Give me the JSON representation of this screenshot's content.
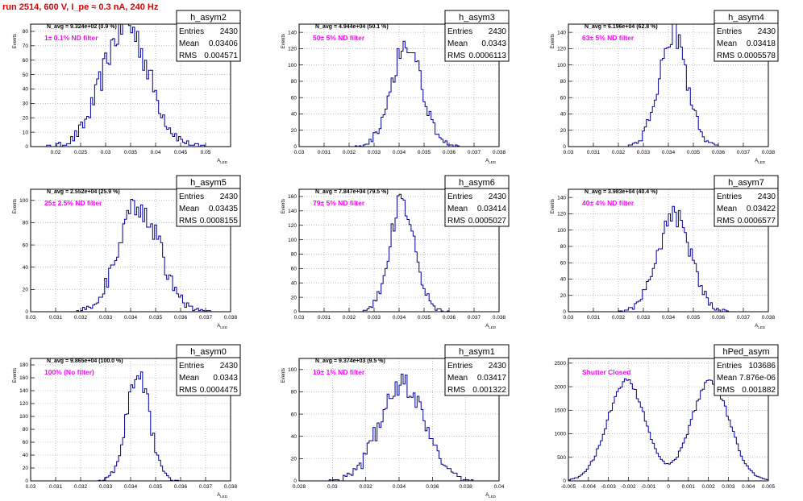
{
  "run_title": "run 2514,   600 V, I_pe ≈ 0.3 nA, 240 Hz",
  "colors": {
    "histogram": "#000099",
    "annotation": "#ff00ff",
    "title": "#e00000",
    "grid": "#9a9a9a"
  },
  "chart_data": [
    {
      "type": "histogram",
      "name": "h_asym2",
      "xlim": [
        0.015,
        0.055
      ],
      "ylim": [
        0,
        85
      ],
      "xticks": [
        0.02,
        0.025,
        0.03,
        0.035,
        0.04,
        0.045,
        0.05
      ],
      "xtick_labels": [
        "0.02",
        "0.025",
        "0.03",
        "0.035",
        "0.04",
        "0.045",
        "0.05"
      ],
      "yticks": [
        0,
        10,
        20,
        30,
        40,
        50,
        60,
        70,
        80
      ],
      "ytick_labels": [
        "0",
        "10",
        "20",
        "30",
        "40",
        "50",
        "60",
        "70",
        "80"
      ],
      "xlabel": "A_LED",
      "ylabel": "Events",
      "grid": true,
      "navg": "N_avg = 9.324e+02 (0.9 %)",
      "filter": "1± 0.1% ND filter",
      "stats": {
        "entries": "2430",
        "mean": "0.03406",
        "rms": "0.004571"
      },
      "dist": {
        "mean": 0.03406,
        "rms": 0.004571,
        "count": 2430,
        "bins": 100
      }
    },
    {
      "type": "histogram",
      "name": "h_asym3",
      "xlim": [
        0.03,
        0.038
      ],
      "ylim": [
        0,
        150
      ],
      "xticks": [
        0.03,
        0.031,
        0.032,
        0.033,
        0.034,
        0.035,
        0.036,
        0.037,
        0.038
      ],
      "xtick_labels": [
        "0.03",
        "0.031",
        "0.032",
        "0.033",
        "0.034",
        "0.035",
        "0.036",
        "0.037",
        "0.038"
      ],
      "yticks": [
        0,
        20,
        40,
        60,
        80,
        100,
        120,
        140
      ],
      "ytick_labels": [
        "0",
        "20",
        "40",
        "60",
        "80",
        "100",
        "120",
        "140"
      ],
      "xlabel": "A_LED",
      "ylabel": "Events",
      "grid": true,
      "navg": "N_avg = 4.944e+04 (50.1 %)",
      "filter": "50± 5% ND filter",
      "stats": {
        "entries": "2430",
        "mean": "0.0343",
        "rms": "0.0006113"
      },
      "dist": {
        "mean": 0.0343,
        "rms": 0.0006113,
        "count": 2430,
        "bins": 100
      }
    },
    {
      "type": "histogram",
      "name": "h_asym4",
      "xlim": [
        0.03,
        0.038
      ],
      "ylim": [
        0,
        150
      ],
      "xticks": [
        0.03,
        0.031,
        0.032,
        0.033,
        0.034,
        0.035,
        0.036,
        0.037,
        0.038
      ],
      "xtick_labels": [
        "0.03",
        "0.031",
        "0.032",
        "0.033",
        "0.034",
        "0.035",
        "0.036",
        "0.037",
        "0.038"
      ],
      "yticks": [
        0,
        20,
        40,
        60,
        80,
        100,
        120,
        140
      ],
      "ytick_labels": [
        "0",
        "20",
        "40",
        "60",
        "80",
        "100",
        "120",
        "140"
      ],
      "xlabel": "A_LED",
      "ylabel": "Events",
      "grid": true,
      "navg": "N_avg = 6.196e+04 (62.8 %)",
      "filter": "63± 5% ND filter",
      "stats": {
        "entries": "2430",
        "mean": "0.03418",
        "rms": "0.0005578"
      },
      "dist": {
        "mean": 0.03418,
        "rms": 0.0005578,
        "count": 2430,
        "bins": 100
      }
    },
    {
      "type": "histogram",
      "name": "h_asym5",
      "xlim": [
        0.03,
        0.038
      ],
      "ylim": [
        0,
        110
      ],
      "xticks": [
        0.03,
        0.031,
        0.032,
        0.033,
        0.034,
        0.035,
        0.036,
        0.037,
        0.038
      ],
      "xtick_labels": [
        "0.03",
        "0.031",
        "0.032",
        "0.033",
        "0.034",
        "0.035",
        "0.036",
        "0.037",
        "0.038"
      ],
      "yticks": [
        0,
        20,
        40,
        60,
        80,
        100
      ],
      "ytick_labels": [
        "0",
        "20",
        "40",
        "60",
        "80",
        "100"
      ],
      "xlabel": "A_LED",
      "ylabel": "Events",
      "grid": true,
      "navg": "N_avg = 2.552e+04 (25.9 %)",
      "filter": "25± 2.5% ND filter",
      "stats": {
        "entries": "2430",
        "mean": "0.03435",
        "rms": "0.0008155"
      },
      "dist": {
        "mean": 0.03435,
        "rms": 0.0008155,
        "count": 2430,
        "bins": 100
      }
    },
    {
      "type": "histogram",
      "name": "h_asym6",
      "xlim": [
        0.03,
        0.038
      ],
      "ylim": [
        0,
        170
      ],
      "xticks": [
        0.03,
        0.031,
        0.032,
        0.033,
        0.034,
        0.035,
        0.036,
        0.037,
        0.038
      ],
      "xtick_labels": [
        "0.03",
        "0.031",
        "0.032",
        "0.033",
        "0.034",
        "0.035",
        "0.036",
        "0.037",
        "0.038"
      ],
      "yticks": [
        0,
        20,
        40,
        60,
        80,
        100,
        120,
        140,
        160
      ],
      "ytick_labels": [
        "0",
        "20",
        "40",
        "60",
        "80",
        "100",
        "120",
        "140",
        "160"
      ],
      "xlabel": "A_LED",
      "ylabel": "Events",
      "grid": true,
      "navg": "N_avg = 7.847e+04 (79.5 %)",
      "filter": "79± 5% ND filter",
      "stats": {
        "entries": "2430",
        "mean": "0.03414",
        "rms": "0.0005027"
      },
      "dist": {
        "mean": 0.03414,
        "rms": 0.0005027,
        "count": 2430,
        "bins": 100
      }
    },
    {
      "type": "histogram",
      "name": "h_asym7",
      "xlim": [
        0.03,
        0.038
      ],
      "ylim": [
        0,
        150
      ],
      "xticks": [
        0.03,
        0.031,
        0.032,
        0.033,
        0.034,
        0.035,
        0.036,
        0.037,
        0.038
      ],
      "xtick_labels": [
        "0.03",
        "0.031",
        "0.032",
        "0.033",
        "0.034",
        "0.035",
        "0.036",
        "0.037",
        "0.038"
      ],
      "yticks": [
        0,
        20,
        40,
        60,
        80,
        100,
        120,
        140
      ],
      "ytick_labels": [
        "0",
        "20",
        "40",
        "60",
        "80",
        "100",
        "120",
        "140"
      ],
      "xlabel": "A_LED",
      "ylabel": "Events",
      "grid": true,
      "navg": "N_avg = 3.983e+04 (40.4 %)",
      "filter": "40± 4% ND filter",
      "stats": {
        "entries": "2430",
        "mean": "0.03422",
        "rms": "0.0006577"
      },
      "dist": {
        "mean": 0.03422,
        "rms": 0.0006577,
        "count": 2430,
        "bins": 100
      }
    },
    {
      "type": "histogram",
      "name": "h_asym0",
      "xlim": [
        0.03,
        0.038
      ],
      "ylim": [
        0,
        190
      ],
      "xticks": [
        0.03,
        0.031,
        0.032,
        0.033,
        0.034,
        0.035,
        0.036,
        0.037,
        0.038
      ],
      "xtick_labels": [
        "0.03",
        "0.031",
        "0.032",
        "0.033",
        "0.034",
        "0.035",
        "0.036",
        "0.037",
        "0.038"
      ],
      "yticks": [
        0,
        20,
        40,
        60,
        80,
        100,
        120,
        140,
        160,
        180
      ],
      "ytick_labels": [
        "0",
        "20",
        "40",
        "60",
        "80",
        "100",
        "120",
        "140",
        "160",
        "180"
      ],
      "xlabel": "A_LED",
      "ylabel": "Events",
      "grid": true,
      "navg": "N_avg = 9.865e+04 (100.0 %)",
      "filter": "100% (No filter)",
      "stats": {
        "entries": "2430",
        "mean": "0.0343",
        "rms": "0.0004475"
      },
      "dist": {
        "mean": 0.0343,
        "rms": 0.0004475,
        "count": 2430,
        "bins": 100
      }
    },
    {
      "type": "histogram",
      "name": "h_asym1",
      "xlim": [
        0.028,
        0.04
      ],
      "ylim": [
        0,
        110
      ],
      "xticks": [
        0.028,
        0.03,
        0.032,
        0.034,
        0.036,
        0.038,
        0.04
      ],
      "xtick_labels": [
        "0.028",
        "0.03",
        "0.032",
        "0.034",
        "0.036",
        "0.038",
        "0.04"
      ],
      "yticks": [
        0,
        20,
        40,
        60,
        80,
        100
      ],
      "ytick_labels": [
        "0",
        "20",
        "40",
        "60",
        "80",
        "100"
      ],
      "xlabel": "A_LED",
      "ylabel": "Events",
      "grid": true,
      "navg": "N_avg = 9.374e+03 (9.5 %)",
      "filter": "10± 1% ND filter",
      "stats": {
        "entries": "2430",
        "mean": "0.03417",
        "rms": "0.001322"
      },
      "dist": {
        "mean": 0.03417,
        "rms": 0.001322,
        "count": 2430,
        "bins": 100
      }
    },
    {
      "type": "histogram",
      "name": "hPed_asym",
      "xlim": [
        -0.005,
        0.005
      ],
      "ylim": [
        0,
        2600
      ],
      "xticks": [
        -0.005,
        -0.004,
        -0.003,
        -0.002,
        -0.001,
        0,
        0.001,
        0.002,
        0.003,
        0.004,
        0.005
      ],
      "xtick_labels": [
        "-0.005",
        "-0.004",
        "-0.003",
        "-0.002",
        "-0.001",
        "0",
        "0.001",
        "0.002",
        "0.003",
        "0.004",
        "0.005"
      ],
      "yticks": [
        0,
        500,
        1000,
        1500,
        2000,
        2500
      ],
      "ytick_labels": [
        "0",
        "500",
        "1000",
        "1500",
        "2000",
        "2500"
      ],
      "xlabel": "",
      "ylabel": "",
      "grid": true,
      "navg": "",
      "filter": "Shutter Closed",
      "stats": {
        "entries": "103686",
        "mean": "7.876e-06",
        "rms": "0.001882"
      },
      "dist": {
        "bimodal": true,
        "peaks": [
          -0.0021,
          0.0021
        ],
        "width": 0.00095,
        "count": 103686,
        "bins": 100
      }
    }
  ]
}
